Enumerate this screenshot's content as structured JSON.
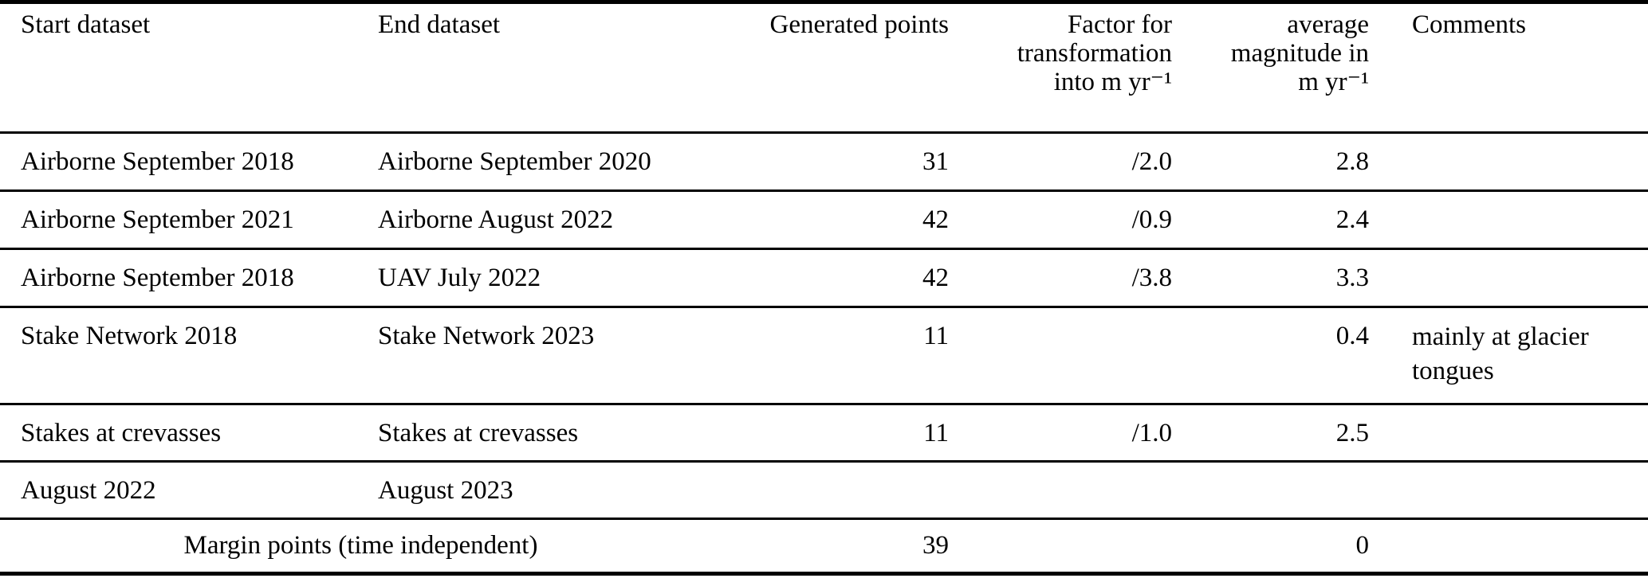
{
  "table": {
    "header": {
      "start": "Start dataset",
      "end": "End dataset",
      "points": "Generated points",
      "factor": "Factor for\ntransformation\ninto m yr⁻¹",
      "magnitude": "average\nmagnitude in\nm yr⁻¹",
      "comments": "Comments"
    },
    "rows": [
      {
        "start": "Airborne September 2018",
        "end": "Airborne September 2020",
        "points": "31",
        "factor": "/2.0",
        "magnitude": "2.8",
        "comments": ""
      },
      {
        "start": "Airborne September 2021",
        "end": "Airborne August 2022",
        "points": "42",
        "factor": "/0.9",
        "magnitude": "2.4",
        "comments": ""
      },
      {
        "start": "Airborne September 2018",
        "end": "UAV July 2022",
        "points": "42",
        "factor": "/3.8",
        "magnitude": "3.3",
        "comments": ""
      },
      {
        "start": "Stake Network 2018",
        "end": "Stake Network 2023",
        "points": "11",
        "factor": "",
        "magnitude": "0.4",
        "comments": "mainly at glacier tongues"
      },
      {
        "start": "Stakes at crevasses",
        "end": "Stakes at crevasses",
        "points": "11",
        "factor": "/1.0",
        "magnitude": "2.5",
        "comments": ""
      },
      {
        "start": "August 2022",
        "end": "August 2023",
        "points": "",
        "factor": "",
        "magnitude": "",
        "comments": ""
      },
      {
        "span": "Margin points (time independent)",
        "points": "39",
        "factor": "",
        "magnitude": "0",
        "comments": ""
      }
    ]
  }
}
